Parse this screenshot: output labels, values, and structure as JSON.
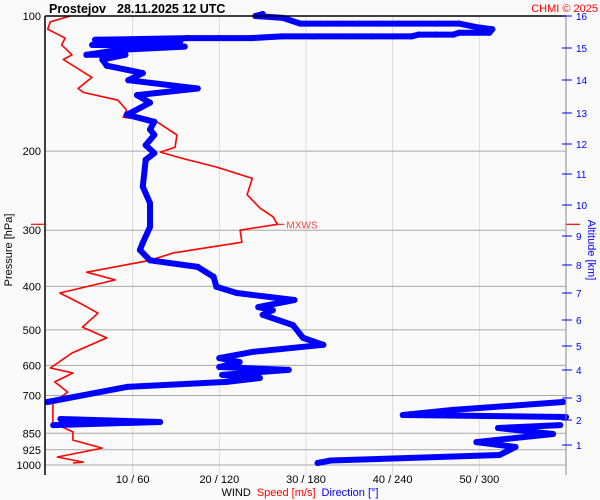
{
  "header": {
    "station": "Prostejov",
    "datetime": "28.11.2025 12 UTC",
    "copyright": "CHMI © 2025"
  },
  "colors": {
    "speed": "#ff0000",
    "direction": "#0000ff",
    "grid": "#a8a8a8",
    "vgrid": "#dcdcdc"
  },
  "chart_data": {
    "type": "line",
    "title": "",
    "ylabel": "Pressure [hPa]",
    "y2label": "Altitude [km]",
    "xlabel_parts": [
      "WIND",
      "Speed [m/s]",
      "Direction [°]"
    ],
    "yscale": "log",
    "ylim": [
      1000,
      100
    ],
    "xlim_speed": [
      0,
      60
    ],
    "xlim_direction": [
      0,
      360
    ],
    "y_ticks": [
      100,
      200,
      300,
      400,
      500,
      600,
      700,
      850,
      925,
      1000
    ],
    "x_ticks": [
      "10 / 60",
      "20 / 120",
      "30 / 180",
      "40 / 240",
      "50 / 300"
    ],
    "y2_ticks": [
      1,
      2,
      3,
      4,
      5,
      6,
      7,
      8,
      9,
      10,
      11,
      12,
      13,
      14,
      15,
      16
    ],
    "grid": true,
    "annotation": {
      "label": "MXWS",
      "pressure": 291,
      "speed": 26.7
    },
    "series": [
      {
        "name": "Speed [m/s]",
        "unit": "m/s",
        "points": [
          [
            100,
            2.8
          ],
          [
            103,
            0.5
          ],
          [
            107,
            0.2
          ],
          [
            112,
            2.2
          ],
          [
            116,
            1.8
          ],
          [
            122,
            3.0
          ],
          [
            125,
            2.0
          ],
          [
            137,
            5.3
          ],
          [
            145,
            3.7
          ],
          [
            148,
            4.3
          ],
          [
            154,
            8.3
          ],
          [
            162,
            9.3
          ],
          [
            168,
            8.9
          ],
          [
            172,
            12.8
          ],
          [
            184,
            15.1
          ],
          [
            196,
            14.9
          ],
          [
            201,
            13.2
          ],
          [
            207,
            15.5
          ],
          [
            217,
            19.7
          ],
          [
            230,
            23.8
          ],
          [
            250,
            23.2
          ],
          [
            268,
            24.7
          ],
          [
            280,
            26.2
          ],
          [
            291,
            26.7
          ],
          [
            300,
            22.4
          ],
          [
            319,
            22.6
          ],
          [
            337,
            14.7
          ],
          [
            350,
            12.0
          ],
          [
            372,
            4.7
          ],
          [
            387,
            8.0
          ],
          [
            414,
            1.6
          ],
          [
            436,
            3.9
          ],
          [
            459,
            6.0
          ],
          [
            493,
            4.2
          ],
          [
            521,
            7.0
          ],
          [
            563,
            3.0
          ],
          [
            608,
            0.5
          ],
          [
            624,
            3.1
          ],
          [
            653,
            1.0
          ],
          [
            688,
            2.5
          ],
          [
            728,
            0.8
          ],
          [
            806,
            0.8
          ],
          [
            844,
            3.1
          ],
          [
            880,
            3.1
          ],
          [
            917,
            6.5
          ],
          [
            960,
            1.3
          ],
          [
            985,
            4.3
          ],
          [
            990,
            3.1
          ]
        ]
      },
      {
        "name": "Direction [°]",
        "unit": "deg",
        "points": [
          [
            990,
            188
          ],
          [
            977,
            197
          ],
          [
            950,
            314
          ],
          [
            912,
            325
          ],
          [
            889,
            298
          ],
          [
            853,
            351
          ],
          [
            827,
            313
          ],
          [
            815,
            356
          ],
          [
            815,
            5
          ],
          [
            802,
            79
          ],
          [
            790,
            10
          ],
          [
            782,
            360
          ],
          [
            774,
            247
          ],
          [
            754,
            282
          ],
          [
            724,
            358
          ],
          [
            724,
            1
          ],
          [
            670,
            56
          ],
          [
            653,
            125
          ],
          [
            640,
            148
          ],
          [
            630,
            122
          ],
          [
            614,
            168
          ],
          [
            605,
            120
          ],
          [
            590,
            134
          ],
          [
            578,
            120
          ],
          [
            560,
            143
          ],
          [
            540,
            192
          ],
          [
            521,
            178
          ],
          [
            488,
            171
          ],
          [
            463,
            150
          ],
          [
            452,
            157
          ],
          [
            445,
            147
          ],
          [
            429,
            172
          ],
          [
            414,
            132
          ],
          [
            401,
            118
          ],
          [
            381,
            116
          ],
          [
            362,
            105
          ],
          [
            350,
            72
          ],
          [
            332,
            65
          ],
          [
            320,
            67
          ],
          [
            295,
            72
          ],
          [
            261,
            72
          ],
          [
            240,
            67
          ],
          [
            209,
            69
          ],
          [
            202,
            75
          ],
          [
            194,
            69
          ],
          [
            184,
            75
          ],
          [
            179,
            72
          ],
          [
            172,
            75
          ],
          [
            166,
            56
          ],
          [
            156,
            72
          ],
          [
            150,
            63
          ],
          [
            145,
            105
          ],
          [
            139,
            57
          ],
          [
            134,
            67
          ],
          [
            129,
            42
          ],
          [
            125,
            39
          ],
          [
            122,
            55
          ],
          [
            122,
            28
          ],
          [
            119,
            51
          ],
          [
            117,
            96
          ],
          [
            116,
            32
          ],
          [
            114,
            93
          ],
          [
            113,
            34
          ],
          [
            112,
            98
          ],
          [
            112,
            120
          ],
          [
            112,
            142
          ],
          [
            111,
            163
          ],
          [
            111,
            186
          ],
          [
            111,
            208
          ],
          [
            111,
            226
          ],
          [
            111,
            240
          ],
          [
            111,
            253
          ],
          [
            110,
            258
          ],
          [
            110,
            270
          ],
          [
            110,
            282
          ],
          [
            109,
            286
          ],
          [
            109,
            297
          ],
          [
            109,
            307
          ],
          [
            107,
            309
          ],
          [
            106,
            299
          ],
          [
            104,
            286
          ],
          [
            104,
            272
          ],
          [
            104,
            258
          ],
          [
            104,
            244
          ],
          [
            104,
            231
          ],
          [
            104,
            217
          ],
          [
            104,
            204
          ],
          [
            104,
            190
          ],
          [
            104,
            176
          ],
          [
            101,
            164
          ],
          [
            100,
            145
          ],
          [
            99,
            150
          ]
        ]
      }
    ]
  }
}
